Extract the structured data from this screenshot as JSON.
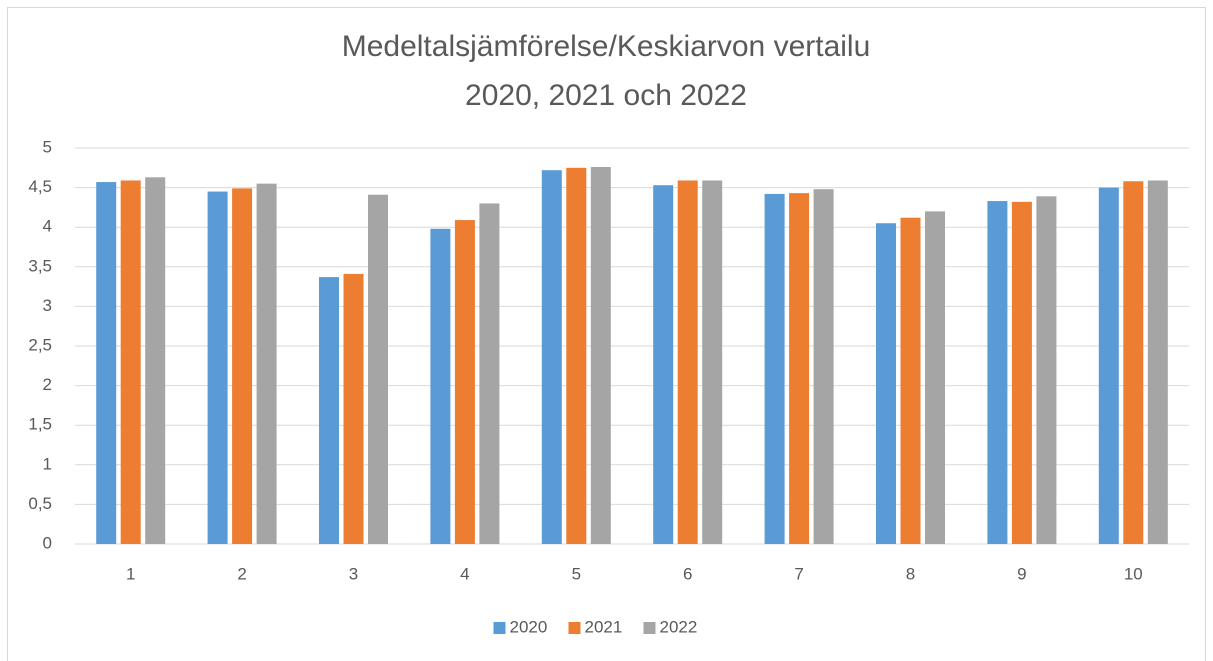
{
  "chart_data": {
    "type": "bar",
    "title": [
      "Medeltalsjämförelse/Keskiarvon vertailu",
      "2020, 2021 och 2022"
    ],
    "categories": [
      "1",
      "2",
      "3",
      "4",
      "5",
      "6",
      "7",
      "8",
      "9",
      "10"
    ],
    "series": [
      {
        "name": "2020",
        "color": "#5b9bd5",
        "values": [
          4.57,
          4.45,
          3.37,
          3.98,
          4.72,
          4.53,
          4.42,
          4.05,
          4.33,
          4.5
        ]
      },
      {
        "name": "2021",
        "color": "#ed7d31",
        "values": [
          4.59,
          4.49,
          3.41,
          4.09,
          4.75,
          4.59,
          4.43,
          4.12,
          4.32,
          4.58
        ]
      },
      {
        "name": "2022",
        "color": "#a5a5a5",
        "values": [
          4.63,
          4.55,
          4.41,
          4.3,
          4.76,
          4.59,
          4.48,
          4.2,
          4.39,
          4.59
        ]
      }
    ],
    "ylim": [
      0,
      5
    ],
    "yticks": [
      0,
      {
        "value": 0.5,
        "label": "0,5"
      },
      1,
      {
        "value": 1.5,
        "label": "1,5"
      },
      2,
      {
        "value": 2.5,
        "label": "2,5"
      },
      3,
      {
        "value": 3.5,
        "label": "3,5"
      },
      4,
      {
        "value": 4.5,
        "label": "4,5"
      },
      5
    ],
    "grid": true,
    "legend": "bottom"
  }
}
